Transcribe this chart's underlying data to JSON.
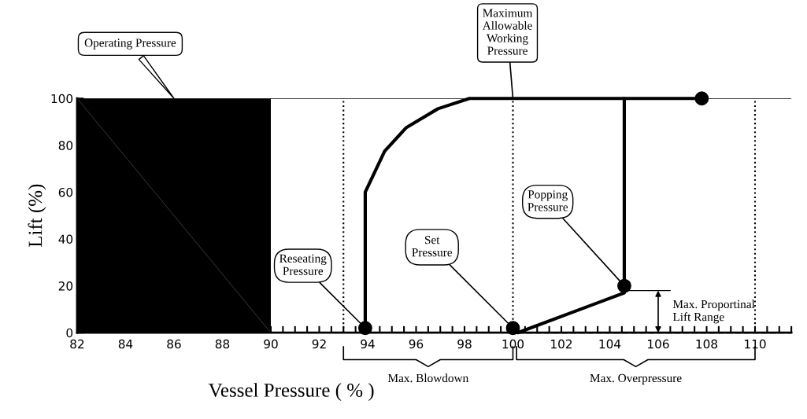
{
  "chart_data": {
    "type": "line",
    "xlabel": "Vessel Pressure ( % )",
    "ylabel": "Lift (%)",
    "xlim": [
      82,
      111.5
    ],
    "xticks": [
      82,
      84,
      86,
      88,
      90,
      92,
      94,
      96,
      98,
      100,
      102,
      104,
      106,
      108,
      110
    ],
    "ylim": [
      0,
      100
    ],
    "yticks": [
      0,
      20,
      40,
      60,
      80,
      100
    ],
    "series": [
      {
        "color": "#000000",
        "x": [
          93.9,
          93.9,
          94.7,
          95.6,
          96.9,
          98.2,
          107.8
        ],
        "values": [
          0,
          60,
          77.5,
          87.6,
          95.6,
          100,
          100
        ]
      },
      {
        "color": "#000000",
        "x": [
          100.2,
          104.6,
          104.6
        ],
        "values": [
          0,
          17,
          100
        ]
      },
      {
        "color": "#000000",
        "line_style": "dashed",
        "x": [
          100.2,
          111.5
        ],
        "values": [
          0,
          0
        ]
      },
      {
        "color": "#000000",
        "x": [
          104.6,
          106.5
        ],
        "values": [
          18,
          18
        ]
      },
      {
        "type": "scatter",
        "color": "#000000",
        "marker": "circle",
        "x": [
          93.9,
          100,
          104.6,
          107.8
        ],
        "values": [
          2,
          2,
          20,
          100
        ]
      }
    ],
    "ref_lines": [
      {
        "axis": "y",
        "value": 100,
        "line_style": "solid"
      },
      {
        "axis": "x",
        "value": 93,
        "line_style": "dotted"
      },
      {
        "axis": "x",
        "value": 100,
        "line_style": "dotted"
      },
      {
        "axis": "x",
        "value": 110,
        "line_style": "dotted"
      }
    ],
    "bands": [
      {
        "axis": "x",
        "from": 82,
        "to": 90,
        "label": "Operating Pressure",
        "color": "#000000"
      }
    ],
    "annotations": [
      {
        "text": "Maximum\nAllowable\nWorking\nPressure",
        "x": 100,
        "y": 100
      },
      {
        "text": "Reseating\nPressure",
        "x": 93.9,
        "y": 2
      },
      {
        "text": "Set\nPressure",
        "x": 100,
        "y": 2
      },
      {
        "text": "Popping\nPressure",
        "x": 104.6,
        "y": 20
      },
      {
        "text": "Max. Proportinal\nLift Range",
        "x": 106,
        "y": 18
      },
      "Max. Blowdown",
      "Max. Overpressure"
    ]
  }
}
